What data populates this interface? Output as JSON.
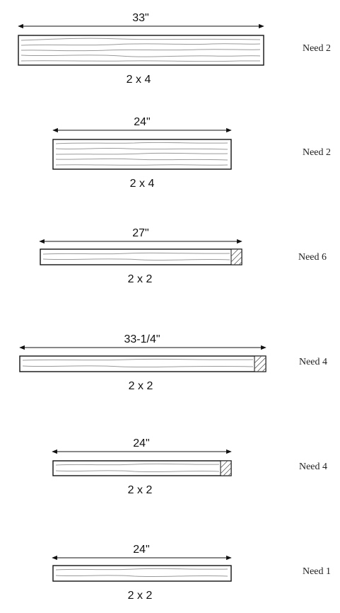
{
  "boards": [
    {
      "length": "33\"",
      "size": "2 x 4",
      "need": "Need 2",
      "end_grain": false
    },
    {
      "length": "24\"",
      "size": "2 x 4",
      "need": "Need 2",
      "end_grain": false
    },
    {
      "length": "27\"",
      "size": "2 x 2",
      "need": "Need 6",
      "end_grain": true
    },
    {
      "length": "33-1/4\"",
      "size": "2 x 2",
      "need": "Need 4",
      "end_grain": true
    },
    {
      "length": "24\"",
      "size": "2 x 2",
      "need": "Need 4",
      "end_grain": true
    },
    {
      "length": "24\"",
      "size": "2 x 2",
      "need": "Need 1",
      "end_grain": false
    }
  ]
}
